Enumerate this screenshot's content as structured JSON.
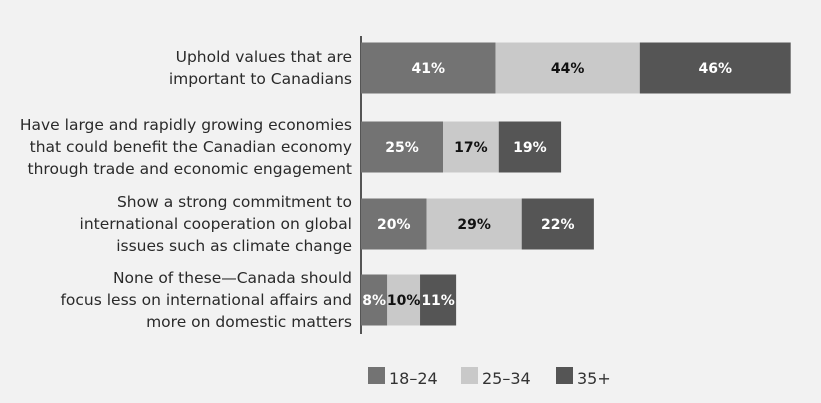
{
  "chart_data": {
    "type": "bar",
    "orientation": "horizontal",
    "stacked": true,
    "categories": [
      [
        "Uphold values that are",
        "important to Canadians"
      ],
      [
        "Have large and rapidly growing economies",
        "that could benefit the Canadian economy",
        "through trade and economic engagement"
      ],
      [
        "Show a strong commitment to",
        "international cooperation on global",
        "issues such as climate change"
      ],
      [
        "None of these—Canada should",
        "focus less on international affairs and",
        "more on domestic matters"
      ]
    ],
    "series": [
      {
        "name": "18–24",
        "values": [
          41,
          25,
          20,
          8
        ],
        "color": "#737373",
        "label_color": "#ffffff"
      },
      {
        "name": "25–34",
        "values": [
          44,
          17,
          29,
          10
        ],
        "color": "#c9c9c9",
        "label_color": "#111111"
      },
      {
        "name": "35+",
        "values": [
          46,
          19,
          22,
          11
        ],
        "color": "#555555",
        "label_color": "#ffffff"
      }
    ],
    "value_suffix": "%",
    "legend_position": "bottom",
    "grid": false
  }
}
